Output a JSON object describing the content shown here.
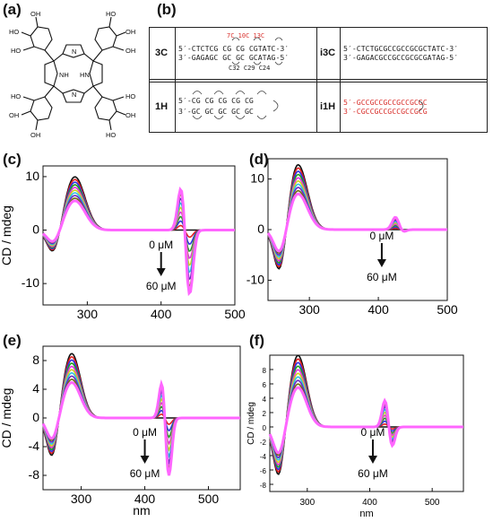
{
  "panel_labels": {
    "a": "(a)",
    "b": "(b)",
    "c": "(c)",
    "d": "(d)",
    "e": "(e)",
    "f": "(f)"
  },
  "molecule": {
    "oh_labels": [
      "HO",
      "OH",
      "HO",
      "OH",
      "HO",
      "OH",
      "HO",
      "OH",
      "OH",
      "HO",
      "OH",
      "HO"
    ],
    "nh_labels": [
      "NH",
      "HN"
    ],
    "n_labels": [
      "N",
      "N"
    ]
  },
  "table": {
    "row1": {
      "left_name": "3C",
      "left_line1": "5′-CTCTCG CG CG CGTATC-3′",
      "left_line2": "3′-GAGAGC GC GC GCATAG-5′",
      "left_loop_top": "7C 10C 13C",
      "left_loop_bottom": "C32 C29 C24",
      "right_name": "i3C",
      "right_line1": "5′-CTCTGCGCCGCCGCGCTATC-3′",
      "right_line2": "3′-GAGACGCCGCCGCGCGATAG-5′"
    },
    "row2": {
      "left_name": "1H",
      "left_line1": "5′-CG CG CG CG CG",
      "left_line2": "3′-GC GC GC GC GC",
      "right_name": "i1H",
      "right_line1": "5′-GCCGCCGCCGCCGCGC",
      "right_line2": "3′-CGCCGCCGCCGCCGCG"
    }
  },
  "annotations": {
    "c": {
      "top": "0 μM",
      "bottom": "60 μM"
    },
    "d": {
      "top": "0 μM",
      "bottom": "60 μM"
    },
    "e": {
      "top": "0 μM",
      "bottom": "60 μM"
    },
    "f": {
      "top": "0 μM",
      "bottom": "60 μM"
    }
  },
  "chart_data": [
    {
      "id": "c",
      "type": "line",
      "ylabel": "CD / mdeg",
      "xlabel": "",
      "xlim": [
        240,
        500
      ],
      "ylim": [
        -14,
        12
      ],
      "xticks": [
        300,
        400,
        500
      ],
      "yticks": [
        -10,
        0,
        10
      ],
      "features": {
        "uv_min": [
          255,
          -5
        ],
        "uv_max": [
          283,
          10
        ],
        "soret_pos": [
          428,
          9
        ],
        "soret_neg": [
          438,
          -13
        ]
      }
    },
    {
      "id": "d",
      "type": "line",
      "ylabel": "CD / mdeg",
      "xlabel": "",
      "xlim": [
        240,
        500
      ],
      "ylim": [
        -14,
        14
      ],
      "xticks": [
        300,
        400,
        500
      ],
      "yticks": [
        -10,
        0,
        10
      ],
      "features": {
        "uv_min": [
          258,
          -10
        ],
        "uv_max": [
          283,
          13
        ],
        "soret_pos": [
          425,
          2.5
        ],
        "soret_neg": [
          435,
          -0.5
        ]
      }
    },
    {
      "id": "e",
      "type": "line",
      "ylabel": "CD / mdeg",
      "xlabel": "nm",
      "xlim": [
        240,
        550
      ],
      "ylim": [
        -10,
        10
      ],
      "xticks": [
        300,
        400,
        500
      ],
      "yticks": [
        -8,
        -4,
        0,
        4,
        8
      ],
      "features": {
        "uv_min": [
          255,
          -6
        ],
        "uv_max": [
          285,
          9
        ],
        "soret_pos": [
          428,
          6
        ],
        "soret_neg": [
          437,
          -9
        ]
      }
    },
    {
      "id": "f",
      "type": "line",
      "ylabel": "CD / mdeg",
      "xlabel": "nm",
      "xlim": [
        240,
        550
      ],
      "ylim": [
        -9,
        10
      ],
      "xticks": [
        300,
        400,
        500
      ],
      "yticks": [
        -8,
        -6,
        -4,
        -2,
        0,
        2,
        4,
        6,
        8
      ],
      "features": {
        "uv_min": [
          255,
          -7.5
        ],
        "uv_max": [
          285,
          10
        ],
        "soret_pos": [
          425,
          4
        ],
        "soret_neg": [
          435,
          -3
        ]
      }
    }
  ],
  "series_colors": [
    "#111111",
    "#e02020",
    "#3030e0",
    "#20a020",
    "#e030e0",
    "#d0d020",
    "#30c0e0",
    "#6a2ac0",
    "#6e6e10",
    "#ff66ff"
  ]
}
